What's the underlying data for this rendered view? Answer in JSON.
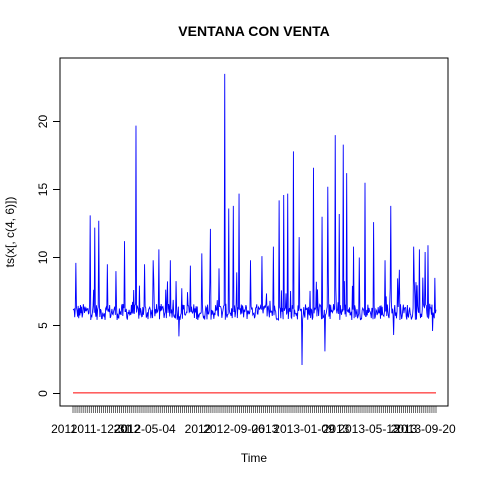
{
  "chart_data": {
    "type": "line",
    "title": "VENTANA CON VENTA",
    "xlabel": "Time",
    "ylabel": "ts(x[, c(4, 6)])",
    "ylim": [
      -1,
      24
    ],
    "yticks": [
      0,
      5,
      10,
      15,
      20
    ],
    "x_tick_labels": [
      "2011-12-31",
      "2012-05-04",
      "2012-09-06",
      "2013-01-09",
      "2013-05-13",
      "2013-09-20"
    ],
    "x_axis_tick_labels_overlap": [
      "2011",
      "2012",
      "2012",
      "2013",
      "2013",
      "2013"
    ],
    "n_points": 635,
    "grid": false,
    "legend": "none",
    "series": [
      {
        "color": "#0000ff",
        "baseline": 6,
        "peaks": [
          {
            "index": 5,
            "value": 9.6
          },
          {
            "index": 30,
            "value": 13.1
          },
          {
            "index": 38,
            "value": 12.2
          },
          {
            "index": 45,
            "value": 12.7
          },
          {
            "index": 60,
            "value": 9.5
          },
          {
            "index": 75,
            "value": 9.0
          },
          {
            "index": 90,
            "value": 11.2
          },
          {
            "index": 110,
            "value": 19.7
          },
          {
            "index": 125,
            "value": 9.5
          },
          {
            "index": 140,
            "value": 9.8
          },
          {
            "index": 150,
            "value": 10.6
          },
          {
            "index": 170,
            "value": 9.8
          },
          {
            "index": 185,
            "value": 9.0
          },
          {
            "index": 205,
            "value": 9.4
          },
          {
            "index": 225,
            "value": 10.3
          },
          {
            "index": 240,
            "value": 12.1
          },
          {
            "index": 255,
            "value": 9.2
          },
          {
            "index": 265,
            "value": 23.5
          },
          {
            "index": 272,
            "value": 13.6
          },
          {
            "index": 280,
            "value": 13.8
          },
          {
            "index": 290,
            "value": 14.7
          },
          {
            "index": 310,
            "value": 9.8
          },
          {
            "index": 330,
            "value": 10.1
          },
          {
            "index": 350,
            "value": 10.8
          },
          {
            "index": 360,
            "value": 14.2
          },
          {
            "index": 368,
            "value": 14.6
          },
          {
            "index": 375,
            "value": 14.7
          },
          {
            "index": 385,
            "value": 17.8
          },
          {
            "index": 395,
            "value": 11.5
          },
          {
            "index": 420,
            "value": 16.6
          },
          {
            "index": 435,
            "value": 13.0
          },
          {
            "index": 445,
            "value": 15.2
          },
          {
            "index": 458,
            "value": 19.0
          },
          {
            "index": 465,
            "value": 13.2
          },
          {
            "index": 472,
            "value": 18.3
          },
          {
            "index": 478,
            "value": 16.2
          },
          {
            "index": 490,
            "value": 10.8
          },
          {
            "index": 500,
            "value": 10.0
          },
          {
            "index": 510,
            "value": 15.5
          },
          {
            "index": 525,
            "value": 12.6
          },
          {
            "index": 545,
            "value": 9.8
          },
          {
            "index": 555,
            "value": 13.8
          },
          {
            "index": 570,
            "value": 9.1
          },
          {
            "index": 595,
            "value": 10.8
          },
          {
            "index": 605,
            "value": 10.6
          },
          {
            "index": 615,
            "value": 10.4
          },
          {
            "index": 620,
            "value": 10.9
          },
          {
            "index": 632,
            "value": 8.5
          }
        ],
        "dips": [
          {
            "index": 185,
            "value": 4.2
          },
          {
            "index": 400,
            "value": 2.1
          },
          {
            "index": 440,
            "value": 3.1
          },
          {
            "index": 560,
            "value": 4.3
          },
          {
            "index": 628,
            "value": 4.6
          }
        ]
      },
      {
        "color": "#ff0000",
        "constant_value": 0.05
      }
    ]
  }
}
